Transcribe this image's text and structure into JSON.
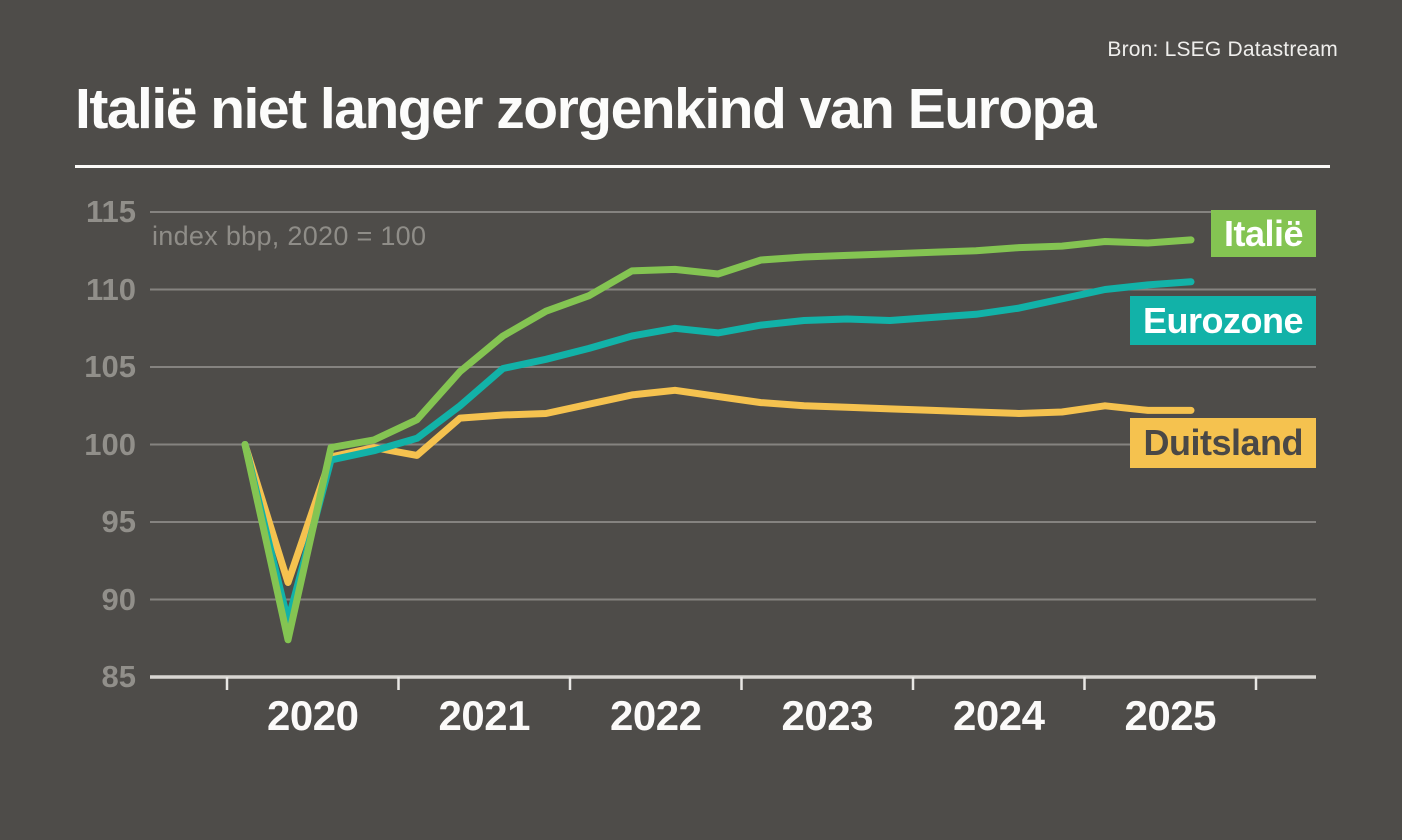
{
  "title": "Italië niet langer zorgenkind van Europa",
  "source": {
    "label": "Bron: LSEG Datastream"
  },
  "annotation": "index bbp, 2020 = 100",
  "colors": {
    "background": "#4e4c49",
    "title_text": "#fcfcfb",
    "divider": "#fbfaf8",
    "gridline": "#858380",
    "axis_line": "#d8d6d2",
    "tick": "#e8e7e4",
    "y_label_text": "#918f8a",
    "x_label_text": "#fbfaf9",
    "annotation_text": "#8f8d88",
    "italie_green": "#84c452",
    "eurozone_teal": "#12b2a8",
    "duitsland_yellow": "#f5c24f"
  },
  "chart_data": {
    "type": "line",
    "title": "Italië niet langer zorgenkind van Europa",
    "subtitle": "index bbp, 2020 = 100",
    "source": "Bron: LSEG Datastream",
    "xlabel": "",
    "ylabel": "index bbp, 2020 = 100",
    "ylim": [
      85,
      115
    ],
    "y_ticks": [
      115,
      110,
      105,
      100,
      95,
      90,
      85
    ],
    "x_tick_labels": [
      "2020",
      "2021",
      "2022",
      "2023",
      "2024",
      "2025"
    ],
    "grid": "horizontal",
    "legend_position": "right",
    "x": [
      "2020Q1",
      "2020Q2",
      "2020Q3",
      "2020Q4",
      "2021Q1",
      "2021Q2",
      "2021Q3",
      "2021Q4",
      "2022Q1",
      "2022Q2",
      "2022Q3",
      "2022Q4",
      "2023Q1",
      "2023Q2",
      "2023Q3",
      "2023Q4",
      "2024Q1",
      "2024Q2",
      "2024Q3",
      "2024Q4",
      "2025Q1",
      "2025Q2",
      "2025Q3"
    ],
    "series": [
      {
        "name": "Duitsland",
        "color": "#f5c24f",
        "text_color": "#4a4846",
        "values": [
          100.0,
          91.1,
          99.2,
          99.8,
          99.3,
          101.7,
          101.9,
          102.0,
          102.6,
          103.2,
          103.5,
          103.1,
          102.7,
          102.5,
          102.4,
          102.3,
          102.2,
          102.1,
          102.0,
          102.1,
          102.5,
          102.2,
          102.2
        ]
      },
      {
        "name": "Eurozone",
        "color": "#12b2a8",
        "text_color": "#ffffff",
        "values": [
          100.0,
          88.6,
          99.0,
          99.6,
          100.4,
          102.5,
          104.9,
          105.5,
          106.2,
          107.0,
          107.5,
          107.2,
          107.7,
          108.0,
          108.1,
          108.0,
          108.2,
          108.4,
          108.8,
          109.4,
          110.0,
          110.3,
          110.5
        ]
      },
      {
        "name": "Italië",
        "color": "#84c452",
        "text_color": "#ffffff",
        "values": [
          100.0,
          87.4,
          99.8,
          100.3,
          101.6,
          104.7,
          107.0,
          108.6,
          109.6,
          111.2,
          111.3,
          111.0,
          111.9,
          112.1,
          112.2,
          112.3,
          112.4,
          112.5,
          112.7,
          112.8,
          113.1,
          113.0,
          113.2
        ]
      }
    ]
  }
}
